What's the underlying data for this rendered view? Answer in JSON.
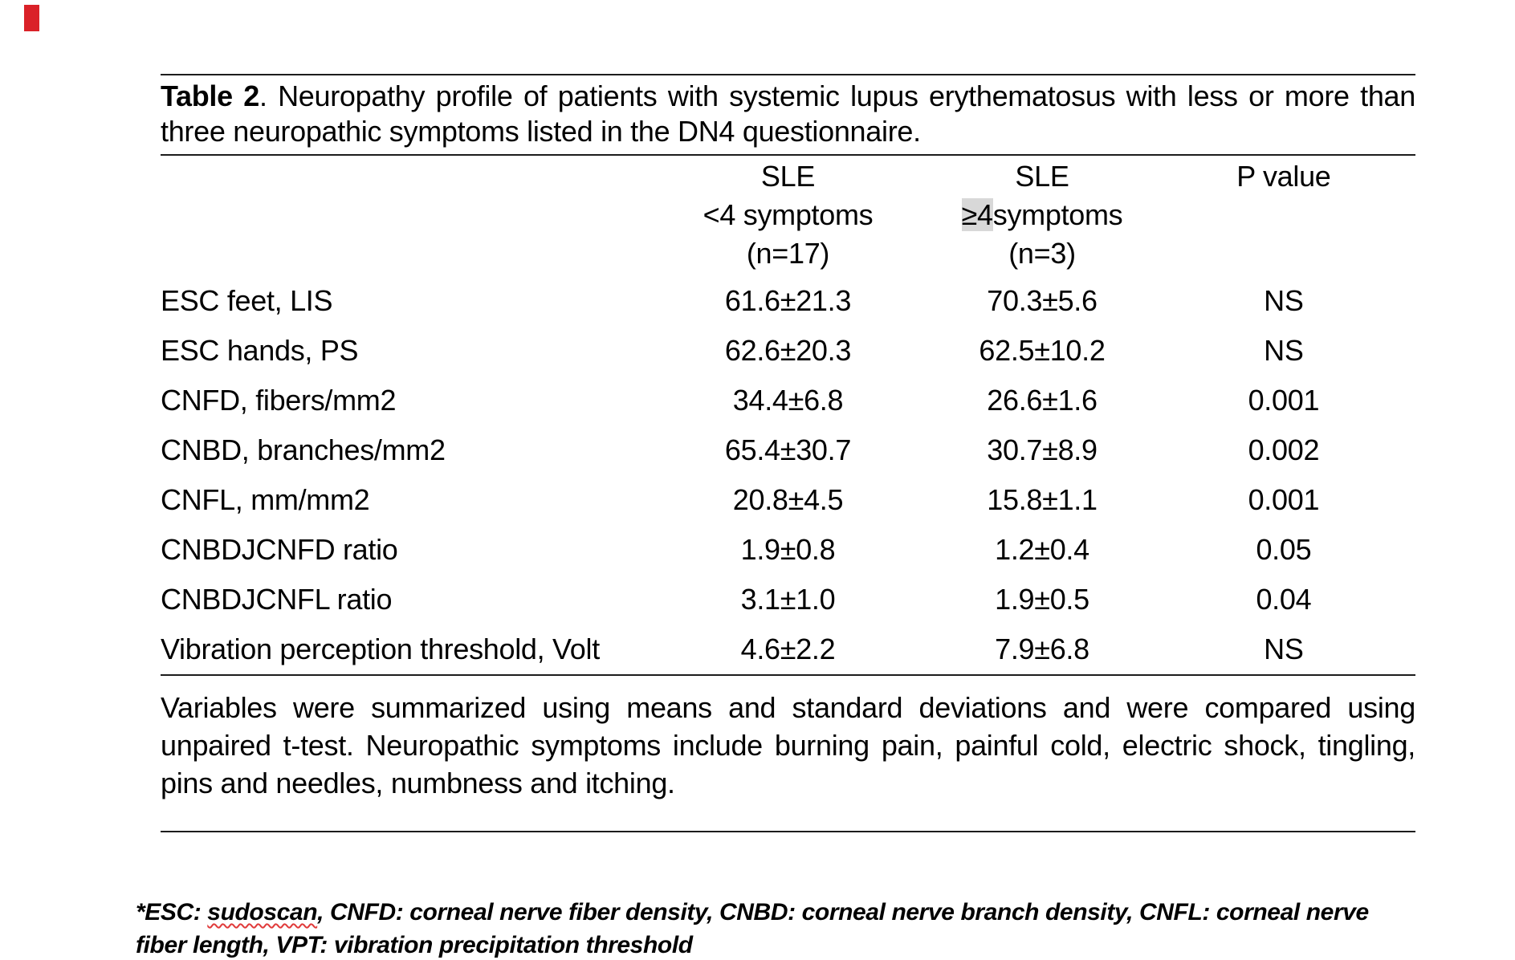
{
  "title": {
    "bold": "Table 2",
    "rest": ". Neuropathy profile of patients with systemic lupus erythematosus with less or more than three neuropathic symptoms listed in the DN4 questionnaire."
  },
  "table": {
    "headers": {
      "col2": {
        "line1": "SLE",
        "line2": "<4 symptoms",
        "line3": "(n=17)"
      },
      "col3": {
        "line1": "SLE",
        "line2_highlight": "≥4",
        "line2_rest": "symptoms",
        "line3": "(n=3)"
      },
      "col4": "P value"
    },
    "rows": [
      {
        "label": "ESC feet, LIS",
        "lt4": "61.6±21.3",
        "ge4": "70.3±5.6",
        "p": "NS"
      },
      {
        "label": "ESC hands, PS",
        "lt4": "62.6±20.3",
        "ge4": "62.5±10.2",
        "p": "NS"
      },
      {
        "label": "CNFD, fibers/mm2",
        "lt4": "34.4±6.8",
        "ge4": "26.6±1.6",
        "p": "0.001"
      },
      {
        "label": "CNBD, branches/mm2",
        "lt4": "65.4±30.7",
        "ge4": "30.7±8.9",
        "p": "0.002"
      },
      {
        "label": "CNFL, mm/mm2",
        "lt4": "20.8±4.5",
        "ge4": "15.8±1.1",
        "p": "0.001"
      },
      {
        "label": "CNBDJCNFD ratio",
        "lt4": "1.9±0.8",
        "ge4": "1.2±0.4",
        "p": "0.05"
      },
      {
        "label": "CNBDJCNFL ratio",
        "lt4": "3.1±1.0",
        "ge4": "1.9±0.5",
        "p": "0.04"
      },
      {
        "label": "Vibration perception threshold, Volt",
        "lt4": "4.6±2.2",
        "ge4": "7.9±6.8",
        "p": "NS"
      }
    ]
  },
  "notes": {
    "methods": "Variables were summarized using means and standard deviations and were compared using unpaired t-test. Neuropathic symptoms include burning pain, painful cold, electric shock, tingling, pins and needles, numbness and itching.",
    "abbrev_prefix": "*ESC: ",
    "abbrev_sudoscan": "sudoscan",
    "abbrev_rest": ", CNFD: corneal nerve fiber density, CNBD: corneal nerve branch density, CNFL: corneal nerve fiber length, VPT: vibration precipitation threshold"
  },
  "colors": {
    "highlight_bg": "#d8d8d8",
    "spellcheck_underline": "#e03a3a",
    "corner_mark": "#da2128"
  }
}
